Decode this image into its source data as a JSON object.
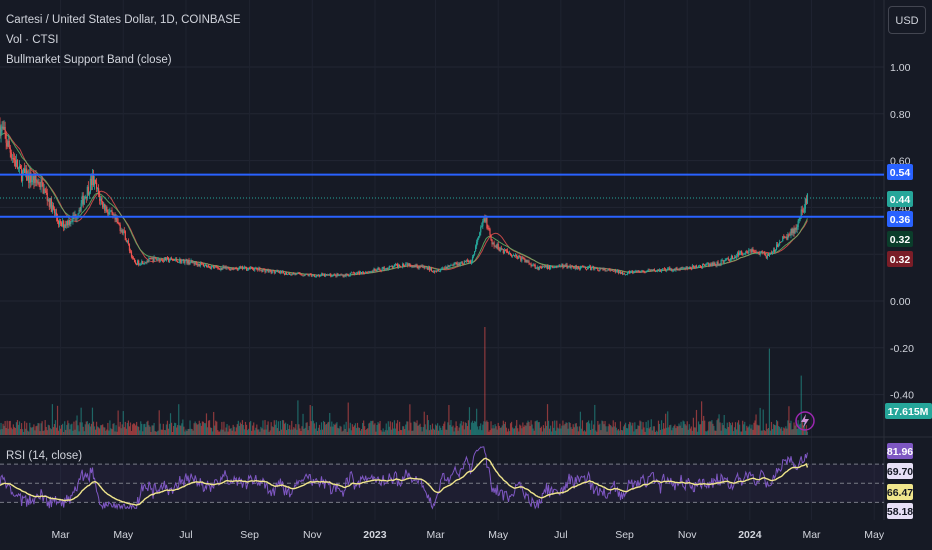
{
  "header": {
    "symbol_title": "Cartesi / United States Dollar, 1D, COINBASE",
    "volume_label": "Vol · CTSI",
    "indicator_label": "Bullmarket Support Band (close)",
    "currency": "USD"
  },
  "rsi_panel": {
    "label": "RSI (14, close)"
  },
  "colors": {
    "background": "#161a25",
    "up": "#26a69a",
    "down": "#ef5350",
    "level_line": "#2962ff",
    "rsi_line": "#7e57c2",
    "rsi_ma": "#f0e68c"
  },
  "chart_data": [
    {
      "type": "candlestick",
      "title": "Cartesi / United States Dollar, 1D, COINBASE",
      "x_ticks": [
        "Mar",
        "May",
        "Jul",
        "Sep",
        "Nov",
        "2023",
        "Mar",
        "May",
        "Jul",
        "Sep",
        "Nov",
        "2024",
        "Mar",
        "May"
      ],
      "y_ticks": [
        "1.00",
        "0.80",
        "0.60",
        "0.40",
        "0.20",
        "0.00",
        "-0.20",
        "-0.40"
      ],
      "ylim": [
        -0.5,
        1.1
      ],
      "price_path": {
        "x": [
          "2022-01-01",
          "2022-01-20",
          "2022-02-10",
          "2022-03-01",
          "2022-03-15",
          "2022-04-01",
          "2022-04-10",
          "2022-04-20",
          "2022-05-01",
          "2022-05-12",
          "2022-06-01",
          "2022-07-01",
          "2022-08-01",
          "2022-09-01",
          "2022-10-01",
          "2022-11-01",
          "2022-12-01",
          "2023-01-01",
          "2023-02-01",
          "2023-03-01",
          "2023-03-20",
          "2023-04-05",
          "2023-04-18",
          "2023-04-25",
          "2023-05-15",
          "2023-06-10",
          "2023-07-01",
          "2023-08-01",
          "2023-09-01",
          "2023-10-01",
          "2023-11-01",
          "2023-12-01",
          "2024-01-01",
          "2024-01-20",
          "2024-02-01",
          "2024-02-15",
          "2024-02-26"
        ],
        "close": [
          0.75,
          0.55,
          0.5,
          0.32,
          0.36,
          0.52,
          0.42,
          0.36,
          0.3,
          0.16,
          0.18,
          0.17,
          0.14,
          0.14,
          0.12,
          0.11,
          0.11,
          0.13,
          0.16,
          0.13,
          0.16,
          0.17,
          0.36,
          0.24,
          0.2,
          0.14,
          0.15,
          0.14,
          0.12,
          0.13,
          0.14,
          0.16,
          0.22,
          0.19,
          0.26,
          0.31,
          0.44
        ]
      },
      "horizontal_levels": [
        {
          "value": 0.54,
          "label": "0.54"
        },
        {
          "value": 0.36,
          "label": "0.36"
        }
      ],
      "price_badges": [
        {
          "label": "0.54",
          "value": 0.54,
          "color": "#2962ff"
        },
        {
          "label": "0.44",
          "value": 0.44,
          "color": "#26a69a"
        },
        {
          "label": "0.36",
          "value": 0.36,
          "color": "#2962ff"
        },
        {
          "label": "0.32",
          "value": 0.32,
          "color": "#0b3d2b"
        },
        {
          "label": "0.32",
          "value": 0.3,
          "color": "#7a1d27"
        }
      ],
      "volume": {
        "last_label": "17.615M",
        "spikes": [
          {
            "x": "2023-04-18",
            "relative_height": 1.0
          },
          {
            "x": "2024-01-20",
            "relative_height": 0.8
          },
          {
            "x": "2024-02-20",
            "relative_height": 0.55
          }
        ]
      }
    },
    {
      "type": "line",
      "title": "RSI (14, close)",
      "y_badges": [
        {
          "label": "81.96",
          "value": 81.96,
          "color": "#7e57c2"
        },
        {
          "label": "69.70",
          "value": 69.7,
          "color": "#e7e0f7"
        },
        {
          "label": "66.47",
          "value": 66.47,
          "color": "#f0e68c"
        },
        {
          "label": "58.18",
          "value": 58.18,
          "color": "#e7e0f7"
        }
      ],
      "bands": [
        70,
        50,
        30
      ],
      "last_rsi": 81.96,
      "last_ma": 66.47
    }
  ]
}
